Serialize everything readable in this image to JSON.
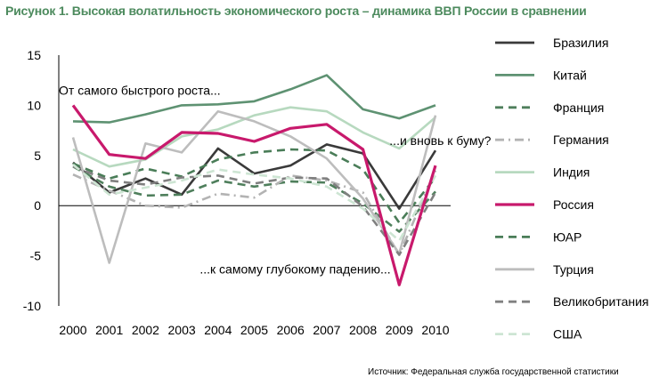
{
  "title": "Рисунок 1. Высокая волатильность экономического роста – динамика ВВП России в сравнении",
  "source": "Источник: Федеральная служба государственной статистики",
  "chart_data": {
    "type": "line",
    "x": [
      "2000",
      "2001",
      "2002",
      "2003",
      "2004",
      "2005",
      "2006",
      "2007",
      "2008",
      "2009",
      "2010"
    ],
    "ylim": [
      -10,
      15
    ],
    "yticks": [
      "15",
      "10",
      "5",
      "0",
      "-5",
      "-10"
    ],
    "grid": false,
    "legend_position": "right",
    "annotations": [
      {
        "text": "От самого быстрого роста...",
        "x": "2000",
        "y": 11.5
      },
      {
        "text": "...и вновь к буму?",
        "x": "2009",
        "y": 6.5
      },
      {
        "text": "...к самому глубокому падению...",
        "x": "2005",
        "y": -6.3
      }
    ],
    "series": [
      {
        "name": "Бразилия",
        "color": "#3a3a3a",
        "dash": "solid",
        "values": [
          4.3,
          1.3,
          2.7,
          1.1,
          5.7,
          3.2,
          4.0,
          6.1,
          5.2,
          -0.3,
          5.5
        ]
      },
      {
        "name": "Китай",
        "color": "#5e9272",
        "dash": "solid",
        "values": [
          8.4,
          8.3,
          9.1,
          10.0,
          10.1,
          10.4,
          11.6,
          13.0,
          9.6,
          8.7,
          10.0
        ]
      },
      {
        "name": "Франция",
        "color": "#4f7f5c",
        "dash": "dash",
        "values": [
          3.9,
          1.9,
          1.0,
          1.1,
          2.5,
          1.9,
          2.4,
          2.3,
          0.2,
          -2.6,
          1.4
        ]
      },
      {
        "name": "Германия",
        "color": "#b3b3b3",
        "dash": "dashdot",
        "values": [
          3.1,
          1.5,
          0.0,
          -0.2,
          1.2,
          0.8,
          3.0,
          2.5,
          1.3,
          -4.9,
          3.5
        ]
      },
      {
        "name": "Индия",
        "color": "#b7d9bf",
        "dash": "solid",
        "values": [
          5.6,
          3.9,
          4.6,
          6.9,
          7.6,
          9.0,
          9.8,
          9.4,
          7.3,
          5.7,
          8.8
        ]
      },
      {
        "name": "Россия",
        "color": "#c8196c",
        "dash": "solid",
        "values": [
          10.0,
          5.1,
          4.7,
          7.3,
          7.2,
          6.4,
          7.7,
          8.1,
          5.6,
          -7.9,
          4.0
        ]
      },
      {
        "name": "ЮАР",
        "color": "#4a7d58",
        "dash": "dash",
        "values": [
          4.2,
          2.7,
          3.7,
          2.9,
          4.6,
          5.3,
          5.6,
          5.5,
          3.6,
          -1.7,
          2.8
        ]
      },
      {
        "name": "Турция",
        "color": "#bdbdbd",
        "dash": "solid",
        "values": [
          6.8,
          -5.7,
          6.2,
          5.3,
          9.4,
          8.4,
          6.9,
          4.7,
          0.7,
          -4.8,
          9.0
        ]
      },
      {
        "name": "Великобритания",
        "color": "#808080",
        "dash": "dash",
        "values": [
          3.9,
          2.5,
          2.1,
          2.8,
          3.0,
          2.2,
          2.8,
          2.7,
          -0.1,
          -4.9,
          1.3
        ]
      },
      {
        "name": "США",
        "color": "#cde5d3",
        "dash": "dash",
        "values": [
          4.1,
          1.1,
          1.8,
          2.5,
          3.6,
          3.1,
          2.7,
          1.9,
          -0.3,
          -3.5,
          3.0
        ]
      }
    ]
  }
}
